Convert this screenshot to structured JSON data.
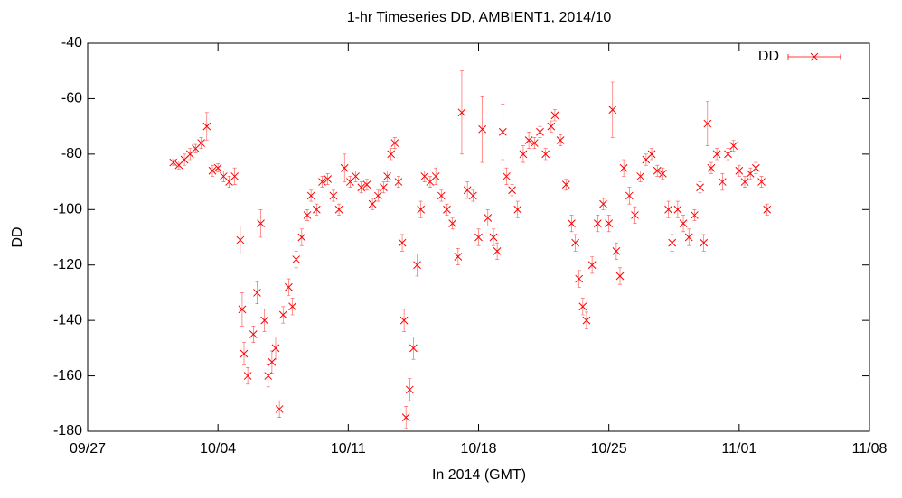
{
  "chart_data": {
    "type": "scatter",
    "title": "1-hr Timeseries DD, AMBIENT1, 2014/10",
    "xlabel": "In 2014 (GMT)",
    "ylabel": "DD",
    "legend": "top-right",
    "xlim": [
      270,
      312
    ],
    "xticks": [
      {
        "value": 270,
        "label": "09/27"
      },
      {
        "value": 277,
        "label": "10/04"
      },
      {
        "value": 284,
        "label": "10/11"
      },
      {
        "value": 291,
        "label": "10/18"
      },
      {
        "value": 298,
        "label": "10/25"
      },
      {
        "value": 305,
        "label": "11/01"
      },
      {
        "value": 312,
        "label": "11/08"
      }
    ],
    "ylim": [
      -180,
      -40
    ],
    "yticks": [
      -180,
      -160,
      -140,
      -120,
      -100,
      -80,
      -60,
      -40
    ],
    "series": [
      {
        "name": "DD",
        "color": "#ff0000",
        "x": [
          274.6,
          274.9,
          275.2,
          275.5,
          275.8,
          276.1,
          276.4,
          276.7,
          277.0,
          277.3,
          277.6,
          277.9,
          278.2,
          278.3,
          278.4,
          278.6,
          278.9,
          279.1,
          279.3,
          279.5,
          279.7,
          279.9,
          280.1,
          280.3,
          280.5,
          280.8,
          281.0,
          281.2,
          281.5,
          281.8,
          282.0,
          282.3,
          282.6,
          282.9,
          283.2,
          283.5,
          283.8,
          284.1,
          284.4,
          284.7,
          285.0,
          285.3,
          285.6,
          285.9,
          286.1,
          286.3,
          286.5,
          286.7,
          286.9,
          287.0,
          287.1,
          287.3,
          287.5,
          287.7,
          287.9,
          288.1,
          288.4,
          288.7,
          289.0,
          289.3,
          289.6,
          289.9,
          290.1,
          290.4,
          290.7,
          291.0,
          291.2,
          291.5,
          291.8,
          292.0,
          292.3,
          292.5,
          292.8,
          293.1,
          293.4,
          293.7,
          294.0,
          294.3,
          294.6,
          294.9,
          295.1,
          295.4,
          295.7,
          296.0,
          296.2,
          296.4,
          296.6,
          296.8,
          297.1,
          297.4,
          297.7,
          298.0,
          298.2,
          298.4,
          298.6,
          298.8,
          299.1,
          299.4,
          299.7,
          300.0,
          300.3,
          300.6,
          300.9,
          301.2,
          301.4,
          301.7,
          302.0,
          302.3,
          302.6,
          302.9,
          303.1,
          303.3,
          303.5,
          303.8,
          304.1,
          304.4,
          304.7,
          305.0,
          305.3,
          305.6,
          305.9,
          306.2,
          306.5
        ],
        "values": [
          -83,
          -84,
          -82,
          -80,
          -78,
          -76,
          -70,
          -86,
          -85,
          -88,
          -90,
          -88,
          -111,
          -136,
          -152,
          -160,
          -145,
          -130,
          -105,
          -140,
          -160,
          -155,
          -150,
          -172,
          -138,
          -128,
          -135,
          -118,
          -110,
          -102,
          -95,
          -100,
          -90,
          -89,
          -95,
          -100,
          -85,
          -90,
          -88,
          -92,
          -91,
          -98,
          -95,
          -92,
          -88,
          -80,
          -76,
          -90,
          -112,
          -140,
          -175,
          -165,
          -150,
          -120,
          -100,
          -88,
          -90,
          -88,
          -95,
          -100,
          -105,
          -117,
          -65,
          -93,
          -95,
          -110,
          -71,
          -103,
          -110,
          -115,
          -72,
          -88,
          -93,
          -100,
          -80,
          -75,
          -76,
          -72,
          -80,
          -70,
          -66,
          -75,
          -91,
          -105,
          -112,
          -125,
          -135,
          -140,
          -120,
          -105,
          -98,
          -105,
          -64,
          -115,
          -124,
          -85,
          -95,
          -102,
          -88,
          -82,
          -80,
          -86,
          -87,
          -100,
          -112,
          -100,
          -105,
          -110,
          -102,
          -92,
          -112,
          -69,
          -85,
          -80,
          -90,
          -80,
          -77,
          -86,
          -90,
          -87,
          -85,
          -90,
          -100
        ],
        "errors": [
          1,
          1.5,
          2,
          2,
          1.5,
          2,
          5,
          2,
          1.5,
          2,
          2,
          3,
          5,
          6,
          4,
          3,
          3,
          4,
          5,
          4,
          4,
          4,
          4,
          3,
          3,
          3,
          3,
          3,
          3,
          2,
          2,
          2,
          2,
          2,
          2,
          2,
          5,
          2,
          2,
          2,
          2,
          2,
          2,
          2,
          2,
          2,
          2,
          2,
          3,
          4,
          4,
          4,
          4,
          4,
          3,
          2,
          2,
          3,
          2,
          2,
          2,
          3,
          15,
          3,
          2,
          3,
          12,
          3,
          3,
          3,
          10,
          3,
          2,
          3,
          3,
          3,
          2,
          2,
          2,
          2,
          2,
          2,
          2,
          3,
          3,
          3,
          3,
          3,
          3,
          3,
          2,
          3,
          10,
          3,
          3,
          3,
          3,
          3,
          2,
          2,
          2,
          2,
          2,
          3,
          3,
          3,
          3,
          3,
          2,
          2,
          3,
          8,
          2,
          2,
          3,
          2,
          2,
          2,
          2,
          2,
          2,
          2,
          2
        ]
      }
    ]
  }
}
